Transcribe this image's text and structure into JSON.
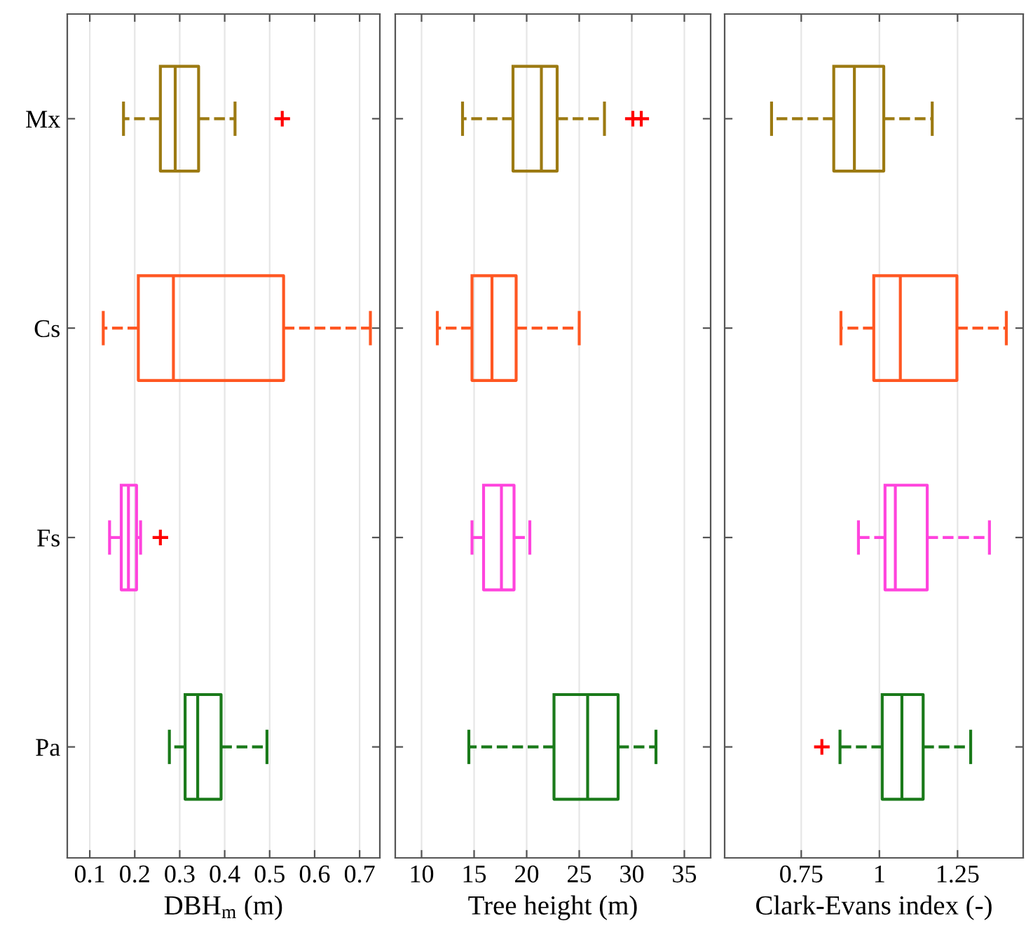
{
  "chart_data": [
    {
      "type": "box",
      "orientation": "horizontal",
      "categories": [
        "Mx",
        "Cs",
        "Fs",
        "Pa"
      ],
      "colors": [
        "#9c7a12",
        "#ff5722",
        "#ff44dd",
        "#1a7a1a"
      ],
      "xlabel": "DBH$_{m}$ (m)",
      "xlim": [
        0.05,
        0.745
      ],
      "xticks": [
        0.1,
        0.2,
        0.3,
        0.4,
        0.5,
        0.6,
        0.7
      ],
      "grid": "x",
      "marker": "cross",
      "line_style": "dashed",
      "boxes": [
        {
          "low": 0.175,
          "q1": 0.257,
          "median": 0.29,
          "q3": 0.342,
          "high": 0.423,
          "outliers": [
            0.528
          ]
        },
        {
          "low": 0.13,
          "q1": 0.208,
          "median": 0.286,
          "q3": 0.531,
          "high": 0.724
        },
        {
          "low": 0.144,
          "q1": 0.17,
          "median": 0.186,
          "q3": 0.204,
          "high": 0.213,
          "outliers": [
            0.257
          ]
        },
        {
          "low": 0.277,
          "q1": 0.312,
          "median": 0.34,
          "q3": 0.392,
          "high": 0.494
        }
      ]
    },
    {
      "type": "box",
      "orientation": "horizontal",
      "categories": [
        null,
        null,
        null,
        null
      ],
      "colors": [
        "#9c7a12",
        "#ff5722",
        "#ff44dd",
        "#1a7a1a"
      ],
      "xlabel": "Tree height (m)",
      "xlim": [
        7.5,
        37.5
      ],
      "xticks": [
        10,
        15,
        20,
        25,
        30,
        35
      ],
      "grid": "x",
      "marker": "cross",
      "line_style": "dashed",
      "tick_labels": "x",
      "boxes": [
        {
          "low": 13.9,
          "q1": 18.7,
          "median": 21.4,
          "q3": 22.9,
          "high": 27.4,
          "outliers": [
            30.1,
            30.9
          ]
        },
        {
          "low": 11.5,
          "q1": 14.8,
          "median": 16.7,
          "q3": 19.0,
          "high": 25.0
        },
        {
          "low": 14.8,
          "q1": 15.9,
          "median": 17.6,
          "q3": 18.8,
          "high": 20.3
        },
        {
          "low": 14.5,
          "q1": 22.6,
          "median": 25.8,
          "q3": 28.7,
          "high": 32.3
        }
      ]
    },
    {
      "type": "box",
      "orientation": "horizontal",
      "categories": [
        null,
        null,
        null,
        null
      ],
      "colors": [
        "#9c7a12",
        "#ff5722",
        "#ff44dd",
        "#1a7a1a"
      ],
      "xlabel": "Clark-Evans index (-)",
      "xlim": [
        0.505,
        1.46
      ],
      "xticks": [
        0.75,
        1,
        1.25
      ],
      "grid": "x",
      "marker": "cross",
      "line_style": "dashed",
      "tick_labels": "x",
      "boxes": [
        {
          "low": 0.655,
          "q1": 0.854,
          "median": 0.92,
          "q3": 1.014,
          "high": 1.169
        },
        {
          "low": 0.877,
          "q1": 0.982,
          "median": 1.067,
          "q3": 1.248,
          "high": 1.406
        },
        {
          "low": 0.933,
          "q1": 1.018,
          "median": 1.051,
          "q3": 1.153,
          "high": 1.352
        },
        {
          "low": 0.874,
          "q1": 1.009,
          "median": 1.072,
          "q3": 1.14,
          "high": 1.292,
          "outliers": [
            0.816
          ]
        }
      ]
    }
  ]
}
